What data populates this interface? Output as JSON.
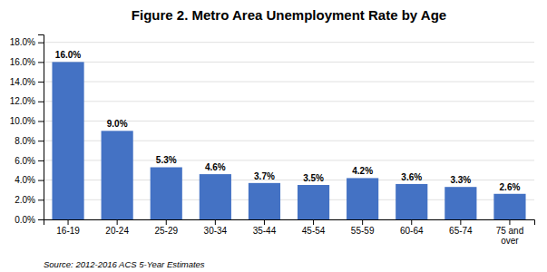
{
  "chart_data": {
    "type": "bar",
    "title": "Figure 2. Metro Area Unemployment Rate by Age",
    "categories": [
      "16-19",
      "20-24",
      "25-29",
      "30-34",
      "35-44",
      "45-54",
      "55-59",
      "60-64",
      "65-74",
      "75 and\nover"
    ],
    "values": [
      16.0,
      9.0,
      5.3,
      4.6,
      3.7,
      3.5,
      4.2,
      3.6,
      3.3,
      2.6
    ],
    "value_labels": [
      "16.0%",
      "9.0%",
      "5.3%",
      "4.6%",
      "3.7%",
      "3.5%",
      "4.2%",
      "3.6%",
      "3.3%",
      "2.6%"
    ],
    "data_labels": true,
    "color": "#4472C4",
    "ylim": [
      0,
      18.8
    ],
    "yticks": [
      {
        "value": 0,
        "label": "0.0%"
      },
      {
        "value": 2,
        "label": "2.0%"
      },
      {
        "value": 4,
        "label": "4.0%"
      },
      {
        "value": 6,
        "label": "6.0%"
      },
      {
        "value": 8,
        "label": "8.0%"
      },
      {
        "value": 10,
        "label": "10.0%"
      },
      {
        "value": 12,
        "label": "12.0%"
      },
      {
        "value": 14,
        "label": "14.0%"
      },
      {
        "value": 16,
        "label": "16.0%"
      },
      {
        "value": 18,
        "label": "18.0%"
      }
    ],
    "grid": true,
    "source": "Source: 2012-2016 ACS 5-Year Estimates"
  }
}
